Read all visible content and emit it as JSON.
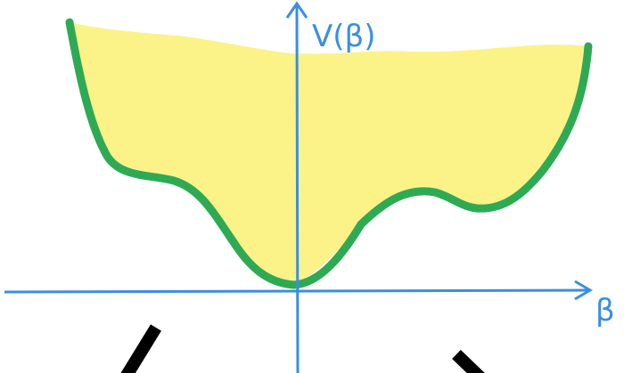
{
  "labels": {
    "y_axis": "V(β)",
    "x_axis": "β"
  }
}
